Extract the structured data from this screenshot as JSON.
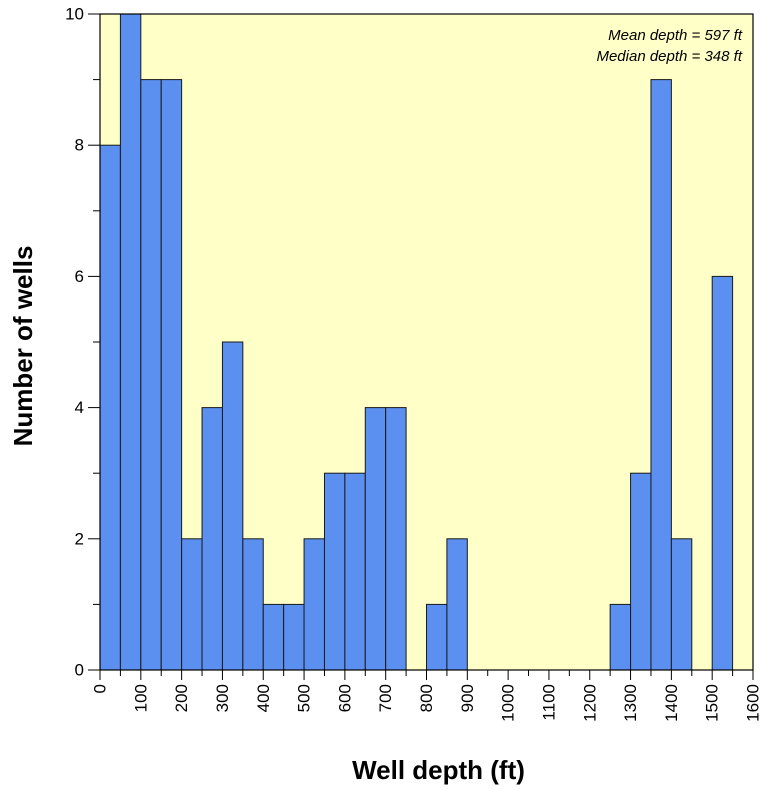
{
  "chart_data": {
    "type": "bar",
    "title": "",
    "xlabel": "Well depth (ft)",
    "ylabel": "Number of wells",
    "bin_width": 50,
    "xlim": [
      0,
      1600
    ],
    "ylim": [
      0,
      10
    ],
    "x_ticks": [
      0,
      100,
      200,
      300,
      400,
      500,
      600,
      700,
      800,
      900,
      1000,
      1100,
      1200,
      1300,
      1400,
      1500,
      1600
    ],
    "y_ticks": [
      0,
      2,
      4,
      6,
      8,
      10
    ],
    "bins": [
      {
        "start": 0,
        "count": 8
      },
      {
        "start": 50,
        "count": 10
      },
      {
        "start": 100,
        "count": 9
      },
      {
        "start": 150,
        "count": 9
      },
      {
        "start": 200,
        "count": 2
      },
      {
        "start": 250,
        "count": 4
      },
      {
        "start": 300,
        "count": 5
      },
      {
        "start": 350,
        "count": 2
      },
      {
        "start": 400,
        "count": 1
      },
      {
        "start": 450,
        "count": 1
      },
      {
        "start": 500,
        "count": 2
      },
      {
        "start": 550,
        "count": 3
      },
      {
        "start": 600,
        "count": 3
      },
      {
        "start": 650,
        "count": 4
      },
      {
        "start": 700,
        "count": 4
      },
      {
        "start": 800,
        "count": 1
      },
      {
        "start": 850,
        "count": 2
      },
      {
        "start": 1250,
        "count": 1
      },
      {
        "start": 1300,
        "count": 3
      },
      {
        "start": 1350,
        "count": 9
      },
      {
        "start": 1400,
        "count": 2
      },
      {
        "start": 1500,
        "count": 6
      }
    ],
    "annotations": [
      "Mean depth = 597 ft",
      "Median depth = 348 ft"
    ],
    "annotation_position": "top-right",
    "grid": false,
    "colors": {
      "plot_background": "#ffffc8",
      "bar_fill": "#5b8ff0",
      "bar_stroke": "#1a1a1a"
    }
  }
}
